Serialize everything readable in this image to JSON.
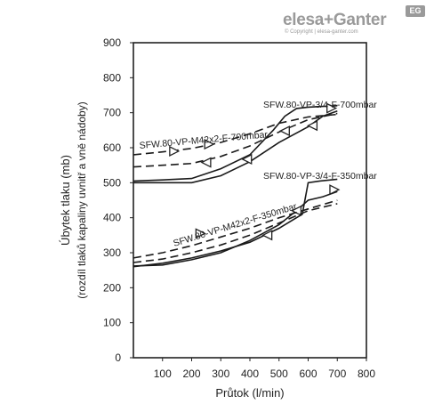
{
  "logo": {
    "brand": "elesa+Ganter",
    "badge": "EG",
    "copyright": "© Copyright | elesa-ganter.com"
  },
  "chart_data": {
    "type": "line",
    "title": "",
    "xlabel": "Průtok (l/min)",
    "ylabel": "Úbytek tlaku (mb)",
    "ylabel2": "(rozdíl tlaků kapaliny uvnitř a vně nádoby)",
    "xlim": [
      0,
      800
    ],
    "ylim": [
      0,
      900
    ],
    "xticks": [
      "100",
      "200",
      "300",
      "400",
      "500",
      "600",
      "700",
      "800"
    ],
    "yticks": [
      "0",
      "100",
      "200",
      "300",
      "400",
      "500",
      "600",
      "700",
      "800",
      "900"
    ],
    "grid": false,
    "series": [
      {
        "name": "SFW.80-VP-3/4-F-700mbar",
        "dash": "solid",
        "points": [
          [
            0,
            505
          ],
          [
            100,
            508
          ],
          [
            200,
            512
          ],
          [
            300,
            540
          ],
          [
            400,
            580
          ],
          [
            480,
            650
          ],
          [
            520,
            690
          ],
          [
            560,
            712
          ],
          [
            600,
            716
          ],
          [
            650,
            718
          ],
          [
            700,
            720
          ]
        ],
        "points_return": [
          [
            0,
            500
          ],
          [
            100,
            500
          ],
          [
            200,
            500
          ],
          [
            300,
            520
          ],
          [
            400,
            560
          ],
          [
            500,
            615
          ],
          [
            600,
            660
          ],
          [
            650,
            690
          ],
          [
            700,
            705
          ]
        ],
        "arrows": [
          [
            680,
            713,
            "right"
          ],
          [
            615,
            663,
            "left"
          ],
          [
            390,
            567,
            "left"
          ]
        ]
      },
      {
        "name": "SFW.80-VP-M42x2-F-700mbar",
        "dash": "dashed",
        "points": [
          [
            0,
            580
          ],
          [
            100,
            588
          ],
          [
            200,
            598
          ],
          [
            300,
            615
          ],
          [
            400,
            640
          ],
          [
            500,
            670
          ],
          [
            600,
            688
          ],
          [
            700,
            695
          ]
        ],
        "points_return": [
          [
            0,
            545
          ],
          [
            100,
            550
          ],
          [
            200,
            555
          ],
          [
            300,
            575
          ],
          [
            400,
            605
          ],
          [
            500,
            645
          ],
          [
            600,
            680
          ],
          [
            700,
            698
          ]
        ],
        "arrows": [
          [
            140,
            590,
            "right"
          ],
          [
            260,
            610,
            "right"
          ],
          [
            520,
            648,
            "left"
          ],
          [
            250,
            558,
            "left"
          ]
        ]
      },
      {
        "name": "SFW.80-VP-3/4-F-350mbar",
        "dash": "solid",
        "points": [
          [
            0,
            260
          ],
          [
            100,
            270
          ],
          [
            200,
            285
          ],
          [
            300,
            305
          ],
          [
            400,
            330
          ],
          [
            500,
            370
          ],
          [
            580,
            410
          ],
          [
            600,
            500
          ],
          [
            640,
            505
          ],
          [
            700,
            510
          ]
        ],
        "points_return": [
          [
            0,
            262
          ],
          [
            100,
            265
          ],
          [
            200,
            280
          ],
          [
            300,
            300
          ],
          [
            400,
            335
          ],
          [
            500,
            380
          ],
          [
            560,
            420
          ],
          [
            600,
            450
          ],
          [
            650,
            460
          ],
          [
            700,
            475
          ]
        ],
        "arrows": [
          [
            560,
            420,
            "left"
          ],
          [
            690,
            480,
            "right"
          ]
        ]
      },
      {
        "name": "SFW.80-VP-M42x2-F-350mbar",
        "dash": "dashed",
        "points": [
          [
            0,
            285
          ],
          [
            100,
            300
          ],
          [
            200,
            320
          ],
          [
            300,
            345
          ],
          [
            400,
            370
          ],
          [
            500,
            400
          ],
          [
            600,
            425
          ],
          [
            700,
            450
          ]
        ],
        "points_return": [
          [
            0,
            272
          ],
          [
            100,
            282
          ],
          [
            200,
            300
          ],
          [
            300,
            322
          ],
          [
            400,
            350
          ],
          [
            500,
            385
          ],
          [
            600,
            420
          ],
          [
            700,
            440
          ]
        ],
        "arrows": [
          [
            230,
            355,
            "right"
          ],
          [
            460,
            350,
            "left"
          ]
        ]
      }
    ]
  }
}
